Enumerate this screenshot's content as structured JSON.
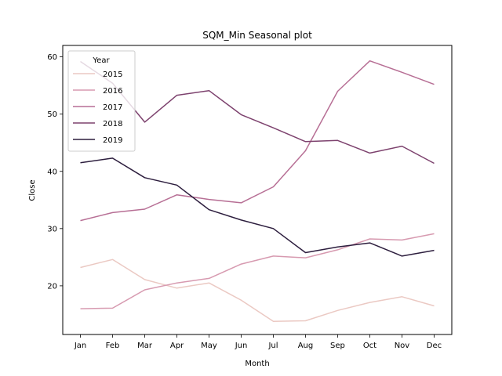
{
  "chart_data": {
    "type": "line",
    "title": "SQM_Min Seasonal plot",
    "xlabel": "Month",
    "ylabel": "Close",
    "categories": [
      "Jan",
      "Feb",
      "Mar",
      "Apr",
      "May",
      "Jun",
      "Jul",
      "Aug",
      "Sep",
      "Oct",
      "Nov",
      "Dec"
    ],
    "ylim": [
      11.5,
      62
    ],
    "yticks": [
      20,
      30,
      40,
      50,
      60
    ],
    "grid": false,
    "legend": {
      "title": "Year",
      "placement": "top-left"
    },
    "series": [
      {
        "name": "2015",
        "color": "#ebc9c3",
        "values": [
          23.2,
          24.6,
          21.1,
          19.6,
          20.5,
          17.5,
          13.8,
          13.9,
          15.7,
          17.1,
          18.1,
          16.5
        ]
      },
      {
        "name": "2016",
        "color": "#d79ab0",
        "values": [
          16.0,
          16.1,
          19.3,
          20.5,
          21.3,
          23.8,
          25.2,
          24.9,
          26.3,
          28.2,
          28.0,
          29.1
        ]
      },
      {
        "name": "2017",
        "color": "#b76f95",
        "values": [
          31.4,
          32.8,
          33.4,
          35.9,
          35.1,
          34.5,
          37.3,
          43.6,
          54.0,
          59.3,
          57.3,
          55.2
        ]
      },
      {
        "name": "2018",
        "color": "#7d426e",
        "values": [
          59.2,
          55.4,
          48.6,
          53.3,
          54.1,
          49.9,
          47.6,
          45.2,
          45.4,
          43.2,
          44.4,
          41.4
        ]
      },
      {
        "name": "2019",
        "color": "#2d1e3e",
        "values": [
          41.5,
          42.3,
          38.9,
          37.6,
          33.3,
          31.5,
          30.0,
          25.8,
          26.8,
          27.5,
          25.2,
          26.2
        ]
      }
    ]
  }
}
